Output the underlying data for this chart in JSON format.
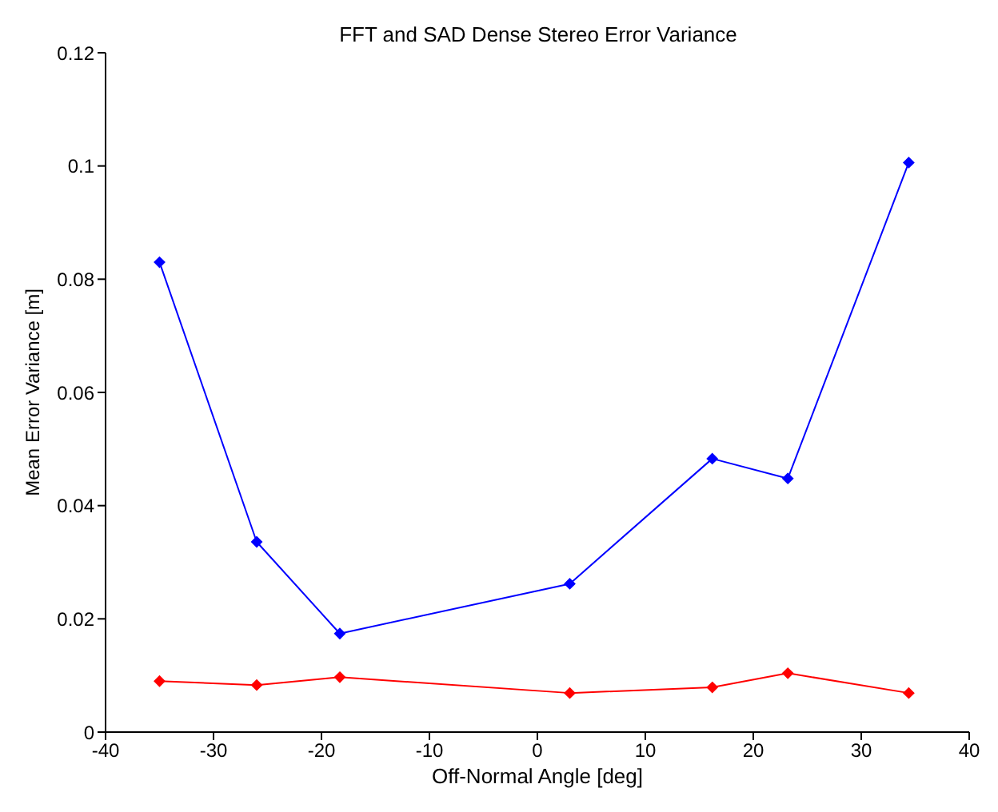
{
  "chart_data": {
    "type": "line",
    "title": "FFT and SAD Dense Stereo Error Variance",
    "xlabel": "Off-Normal Angle [deg]",
    "ylabel": "Mean Error Variance [m]",
    "x": [
      -35,
      -26,
      -18.3,
      3,
      16.2,
      23.2,
      34.4
    ],
    "series": [
      {
        "color": "#0000ff",
        "values": [
          0.083,
          0.0336,
          0.0174,
          0.0262,
          0.0483,
          0.0448,
          0.1006
        ]
      },
      {
        "color": "#ff0000",
        "values": [
          0.009,
          0.0083,
          0.0097,
          0.0069,
          0.0079,
          0.0104,
          0.0069
        ]
      }
    ],
    "xlim": [
      -40,
      40
    ],
    "xticks": [
      -40,
      -30,
      -20,
      -10,
      0,
      10,
      20,
      30,
      40
    ],
    "ylim": [
      0,
      0.12
    ],
    "yticks": [
      0,
      0.02,
      0.04,
      0.06,
      0.08,
      0.1,
      0.12
    ],
    "grid": false,
    "legend": false,
    "marker": "diamond",
    "line_style": "solid"
  }
}
